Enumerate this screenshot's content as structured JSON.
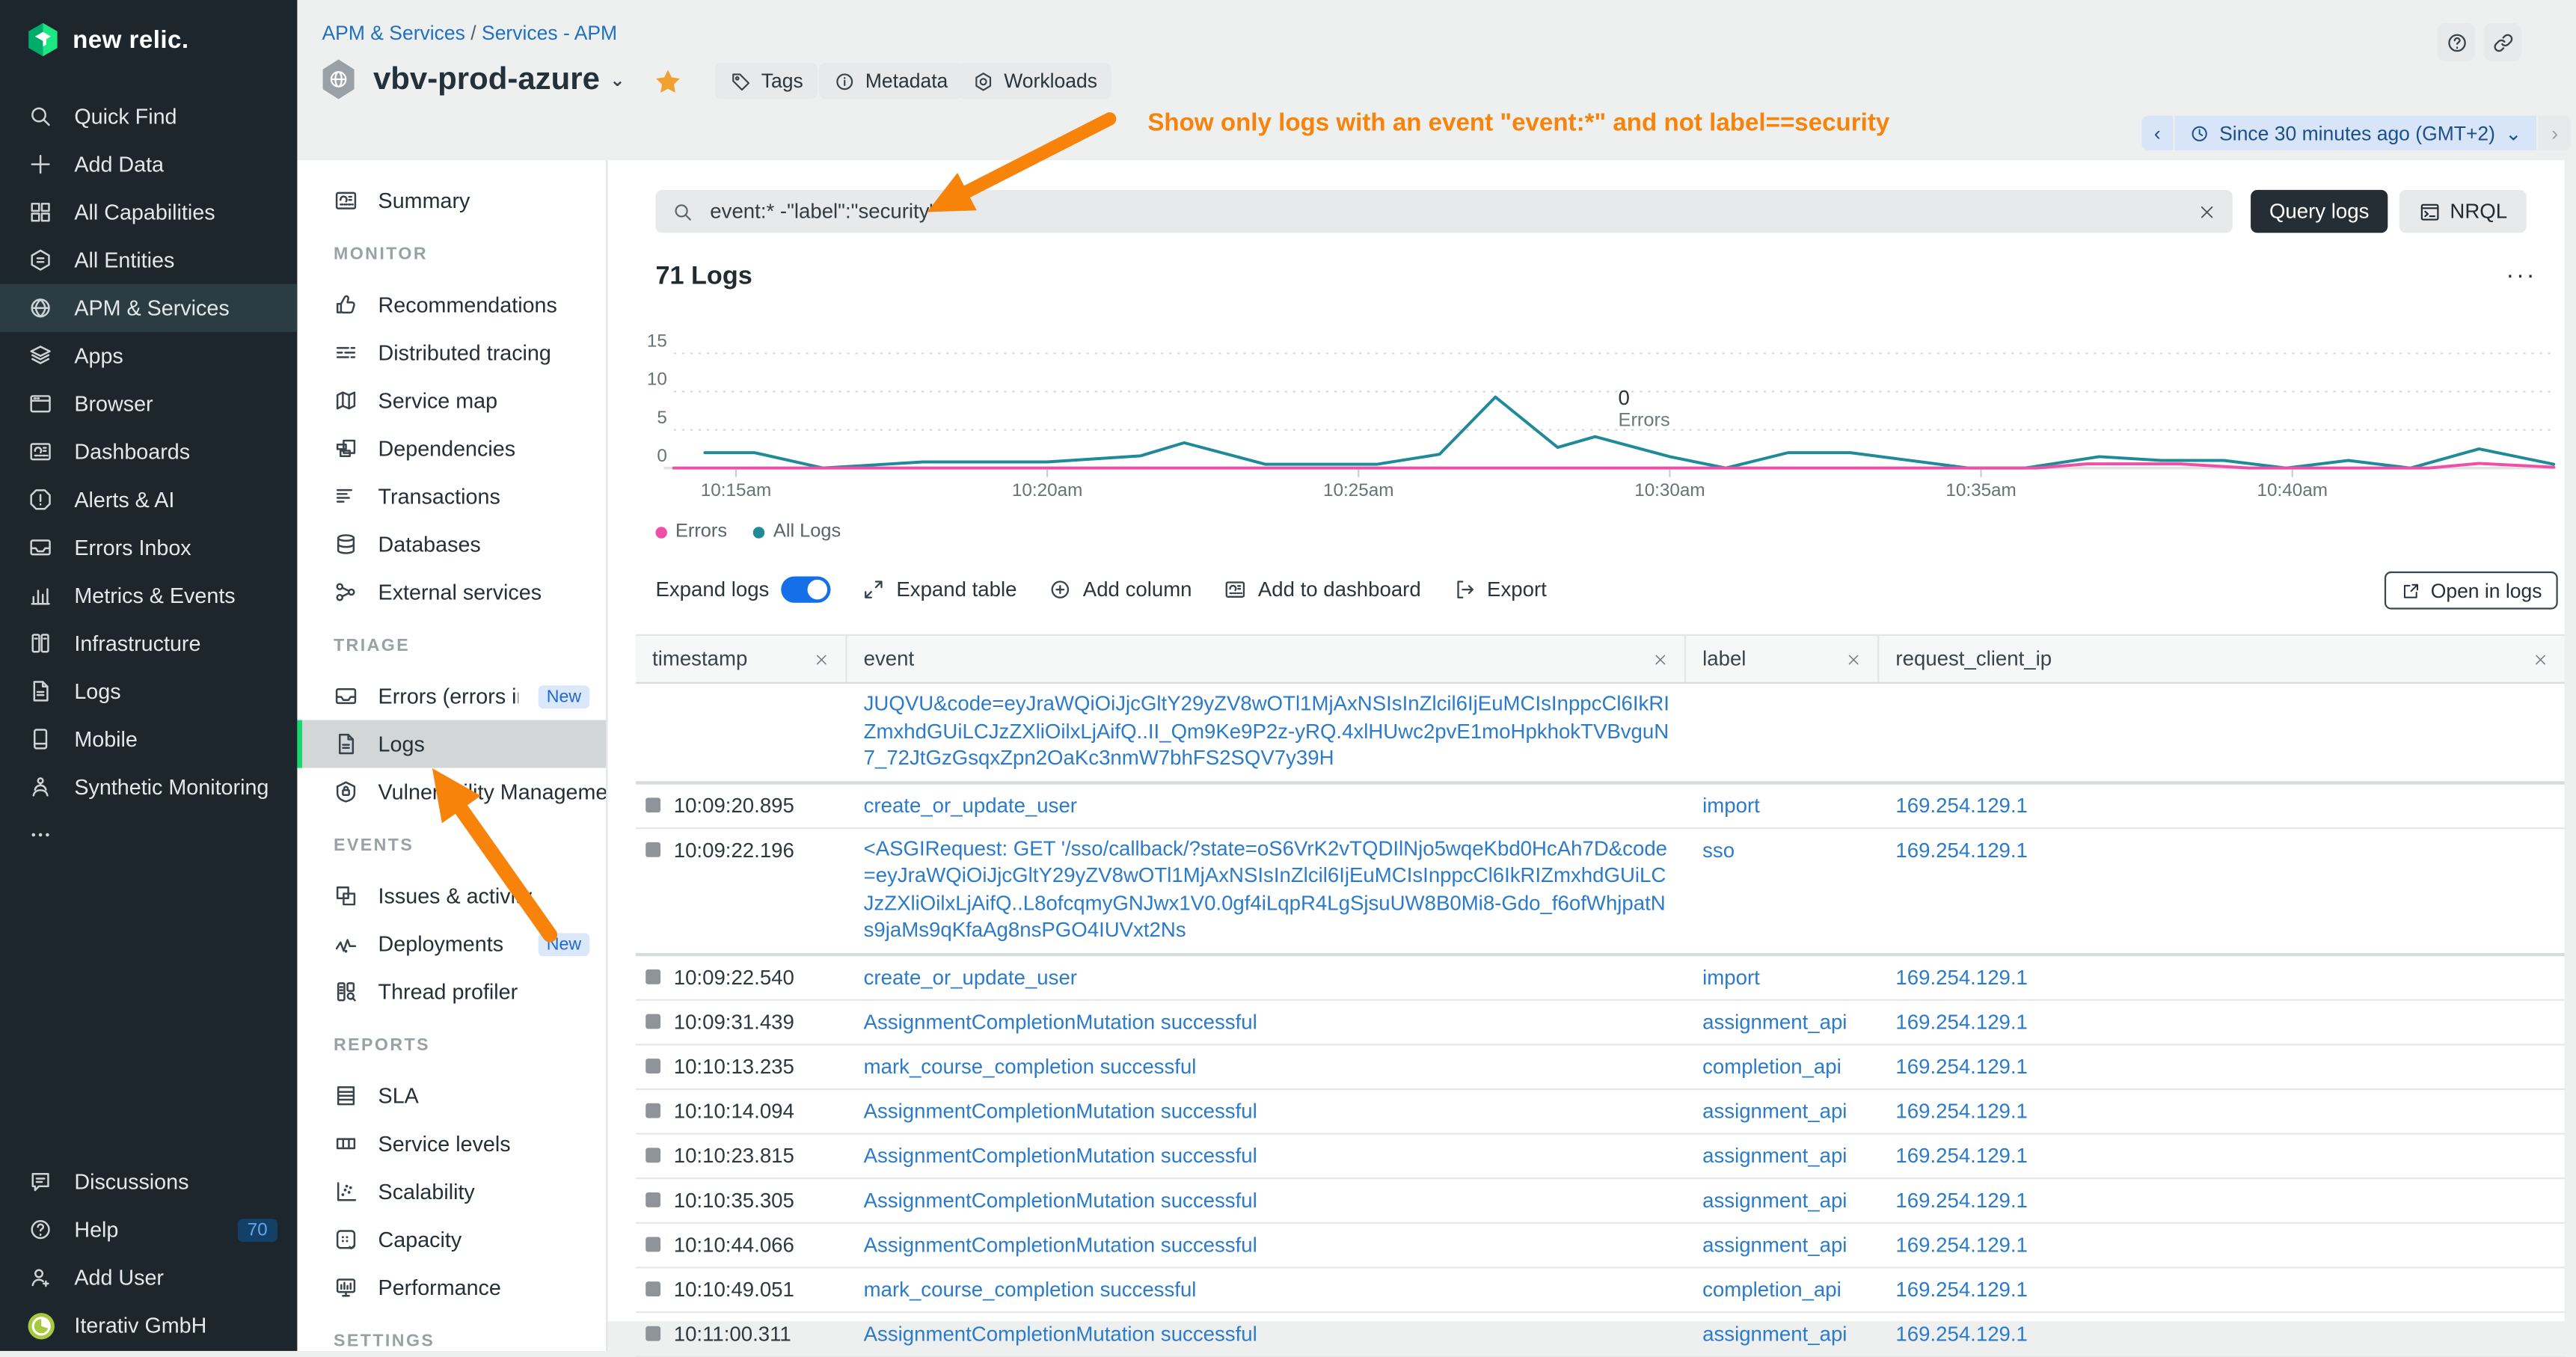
{
  "colors": {
    "accent_orange": "#f8830b",
    "link_blue": "#2b7bc9",
    "errors_pink": "#ee4fa8",
    "all_logs_teal": "#1f8b99",
    "brand_green": "#1ce783",
    "toggle_blue": "#1470e8"
  },
  "brand": {
    "logo_text": "new relic."
  },
  "global_nav": {
    "items": [
      {
        "label": "Quick Find",
        "icon": "search"
      },
      {
        "label": "Add Data",
        "icon": "plus"
      },
      {
        "label": "All Capabilities",
        "icon": "grid"
      },
      {
        "label": "All Entities",
        "icon": "hexlist"
      },
      {
        "label": "APM & Services",
        "icon": "globe",
        "active": true
      },
      {
        "label": "Apps",
        "icon": "layers"
      },
      {
        "label": "Browser",
        "icon": "window"
      },
      {
        "label": "Dashboards",
        "icon": "dashboard"
      },
      {
        "label": "Alerts & AI",
        "icon": "alert"
      },
      {
        "label": "Errors Inbox",
        "icon": "inbox"
      },
      {
        "label": "Metrics & Events",
        "icon": "barchart"
      },
      {
        "label": "Infrastructure",
        "icon": "servers"
      },
      {
        "label": "Logs",
        "icon": "doc"
      },
      {
        "label": "Mobile",
        "icon": "phone"
      },
      {
        "label": "Synthetic Monitoring",
        "icon": "robot"
      },
      {
        "label": "",
        "icon": "dots"
      }
    ],
    "footer_items": [
      {
        "label": "Discussions",
        "icon": "chat"
      },
      {
        "label": "Help",
        "icon": "help",
        "badge": "70"
      },
      {
        "label": "Add User",
        "icon": "useradd"
      },
      {
        "label": "Iterativ GmbH",
        "icon": "avatar"
      }
    ]
  },
  "entity_nav": {
    "groups": [
      {
        "section": "",
        "items": [
          {
            "label": "Summary",
            "icon": "summary"
          }
        ]
      },
      {
        "section": "MONITOR",
        "items": [
          {
            "label": "Recommendations",
            "icon": "thumb"
          },
          {
            "label": "Distributed tracing",
            "icon": "tracing"
          },
          {
            "label": "Service map",
            "icon": "map"
          },
          {
            "label": "Dependencies",
            "icon": "copies"
          },
          {
            "label": "Transactions",
            "icon": "translist"
          },
          {
            "label": "Databases",
            "icon": "db"
          },
          {
            "label": "External services",
            "icon": "share"
          }
        ]
      },
      {
        "section": "TRIAGE",
        "items": [
          {
            "label": "Errors (errors inb...",
            "icon": "inbox",
            "badge": "New"
          },
          {
            "label": "Logs",
            "icon": "doc",
            "selected": true
          },
          {
            "label": "Vulnerability Management",
            "icon": "shield"
          }
        ]
      },
      {
        "section": "EVENTS",
        "items": [
          {
            "label": "Issues & activity",
            "icon": "squares2"
          },
          {
            "label": "Deployments",
            "icon": "pulse",
            "badge": "New"
          },
          {
            "label": "Thread profiler",
            "icon": "threadp"
          }
        ]
      },
      {
        "section": "REPORTS",
        "items": [
          {
            "label": "SLA",
            "icon": "sla"
          },
          {
            "label": "Service levels",
            "icon": "slevels"
          },
          {
            "label": "Scalability",
            "icon": "scatter"
          },
          {
            "label": "Capacity",
            "icon": "capacity"
          },
          {
            "label": "Performance",
            "icon": "perf"
          }
        ]
      },
      {
        "section": "SETTINGS",
        "items": []
      }
    ]
  },
  "header": {
    "breadcrumb": {
      "link1": "APM & Services",
      "separator": "/",
      "link2": "Services - APM"
    },
    "entity": {
      "title": "vbv-prod-azure",
      "chevron": "⌄",
      "pill_buttons": [
        {
          "label": "Tags",
          "icon": "tag"
        },
        {
          "label": "Metadata",
          "icon": "info"
        },
        {
          "label": "Workloads",
          "icon": "workhex"
        }
      ]
    },
    "annotation": "Show only logs with an event \"event:*\" and not label==security",
    "time_picker": {
      "prev": "‹",
      "label": "Since 30 minutes ago (GMT+2)",
      "chevron": "⌄",
      "next": "›"
    }
  },
  "query_bar": {
    "value": "event:* -\"label\":\"security\"",
    "query_button": "Query logs",
    "nrql_button": "NRQL"
  },
  "logs_panel": {
    "title": "71 Logs",
    "menu": "...",
    "tooltip": {
      "value": "0",
      "label": "Errors"
    },
    "legend": [
      {
        "label": "Errors",
        "color": "#ee4fa8"
      },
      {
        "label": "All Logs",
        "color": "#1f8b99"
      }
    ],
    "toolbar": {
      "expand_logs": "Expand logs",
      "expand_table": "Expand table",
      "add_column": "Add column",
      "add_to_dashboard": "Add to dashboard",
      "export": "Export",
      "open_in_logs": "Open in logs"
    }
  },
  "table": {
    "columns": [
      "timestamp",
      "event",
      "label",
      "request_client_ip"
    ],
    "rows": [
      {
        "timestamp": "",
        "event": "JUQVU&code=eyJraWQiOiJjcGltY29yZV8wOTl1MjAxNSIsInZlcil6IjEuMCIsInppcCl6IkRIZmxhdGUiLCJzZXliOilxLjAifQ..II_Qm9Ke9P2z-yRQ.4xlHUwc2pvE1moHpkhokTVBvguN7_72JtGzGsqxZpn2OaKc3nmW7bhFS2SQV7y39H",
        "label": "",
        "request_client_ip": "",
        "expanded": true
      },
      {
        "timestamp": "10:09:20.895",
        "event": "create_or_update_user",
        "label": "import",
        "request_client_ip": "169.254.129.1"
      },
      {
        "timestamp": "10:09:22.196",
        "event": "<ASGIRequest: GET '/sso/callback/?state=oS6VrK2vTQDIlNjo5wqeKbd0HcAh7D&code=eyJraWQiOiJjcGltY29yZV8wOTl1MjAxNSIsInZlcil6IjEuMCIsInppcCl6IkRIZmxhdGUiLCJzZXliOilxLjAifQ..L8ofcqmyGNJwx1V0.0gf4iLqpR4LgSjsuUW8B0Mi8-Gdo_f6ofWhjpatNs9jaMs9qKfaAg8nsPGO4IUVxt2Ns",
        "label": "sso",
        "request_client_ip": "169.254.129.1",
        "expanded": true
      },
      {
        "timestamp": "10:09:22.540",
        "event": "create_or_update_user",
        "label": "import",
        "request_client_ip": "169.254.129.1"
      },
      {
        "timestamp": "10:09:31.439",
        "event": "AssignmentCompletionMutation successful",
        "label": "assignment_api",
        "request_client_ip": "169.254.129.1"
      },
      {
        "timestamp": "10:10:13.235",
        "event": "mark_course_completion successful",
        "label": "completion_api",
        "request_client_ip": "169.254.129.1"
      },
      {
        "timestamp": "10:10:14.094",
        "event": "AssignmentCompletionMutation successful",
        "label": "assignment_api",
        "request_client_ip": "169.254.129.1"
      },
      {
        "timestamp": "10:10:23.815",
        "event": "AssignmentCompletionMutation successful",
        "label": "assignment_api",
        "request_client_ip": "169.254.129.1"
      },
      {
        "timestamp": "10:10:35.305",
        "event": "AssignmentCompletionMutation successful",
        "label": "assignment_api",
        "request_client_ip": "169.254.129.1"
      },
      {
        "timestamp": "10:10:44.066",
        "event": "AssignmentCompletionMutation successful",
        "label": "assignment_api",
        "request_client_ip": "169.254.129.1"
      },
      {
        "timestamp": "10:10:49.051",
        "event": "mark_course_completion successful",
        "label": "completion_api",
        "request_client_ip": "169.254.129.1"
      },
      {
        "timestamp": "10:11:00.311",
        "event": "AssignmentCompletionMutation successful",
        "label": "assignment_api",
        "request_client_ip": "169.254.129.1"
      }
    ]
  },
  "chart_data": {
    "type": "line",
    "title": "71 Logs",
    "xlabel": "",
    "ylabel": "",
    "x_unit": "minutes after 10:14am",
    "ylim": [
      0,
      15
    ],
    "yticks": [
      0,
      5,
      10,
      15
    ],
    "grid": "horizontal dotted",
    "legend_position": "bottom-left",
    "x_axis": {
      "ticks": [
        {
          "t": 1,
          "label": "10:15am"
        },
        {
          "t": 6,
          "label": "10:20am"
        },
        {
          "t": 11,
          "label": "10:25am"
        },
        {
          "t": 16,
          "label": "10:30am"
        },
        {
          "t": 21,
          "label": "10:35am"
        },
        {
          "t": 26,
          "label": "10:40am"
        }
      ]
    },
    "series": [
      {
        "name": "All Logs",
        "color": "#1f8b99",
        "points": [
          [
            0.5,
            2
          ],
          [
            1.3,
            2
          ],
          [
            2.4,
            0
          ],
          [
            4,
            0.8
          ],
          [
            6,
            0.8
          ],
          [
            7.5,
            1.6
          ],
          [
            8.2,
            3.3
          ],
          [
            9.5,
            0.5
          ],
          [
            11.3,
            0.5
          ],
          [
            12.3,
            1.8
          ],
          [
            13.2,
            9.3
          ],
          [
            14.2,
            2.7
          ],
          [
            14.8,
            4.1
          ],
          [
            16,
            1.5
          ],
          [
            16.9,
            0
          ],
          [
            17.9,
            2
          ],
          [
            18.9,
            2
          ],
          [
            20.8,
            0
          ],
          [
            21.7,
            0
          ],
          [
            22.9,
            1.5
          ],
          [
            23.9,
            1
          ],
          [
            24.9,
            1
          ],
          [
            25.9,
            0
          ],
          [
            26.9,
            1
          ],
          [
            27.9,
            0
          ],
          [
            29,
            2.5
          ],
          [
            30.2,
            0.5
          ]
        ]
      },
      {
        "name": "Errors",
        "color": "#ee4fa8",
        "points": [
          [
            0,
            0
          ],
          [
            21.9,
            0
          ],
          [
            22.7,
            0.55
          ],
          [
            24.2,
            0.55
          ],
          [
            25.3,
            0
          ],
          [
            28.2,
            0
          ],
          [
            29,
            0.6
          ],
          [
            30.2,
            0.1
          ]
        ]
      }
    ],
    "annotation": {
      "value": "0",
      "label": "Errors",
      "near": "10:29am"
    }
  }
}
